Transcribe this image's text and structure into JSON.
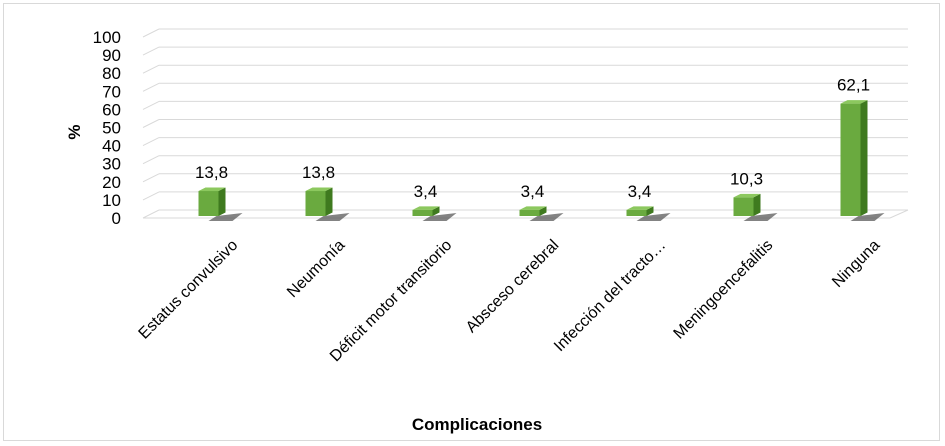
{
  "chart_data": {
    "type": "bar",
    "title": "",
    "xlabel": "Complicaciones",
    "ylabel": "%",
    "ylim": [
      0,
      100
    ],
    "yticks": [
      0,
      10,
      20,
      30,
      40,
      50,
      60,
      70,
      80,
      90,
      100
    ],
    "categories": [
      "Estatus convulsivo",
      "Neumonía",
      "Déficit motor transitorio",
      "Absceso cerebral",
      "Infección del tracto…",
      "Meningoencefalitis",
      "Ninguna"
    ],
    "values": [
      13.8,
      13.8,
      3.4,
      3.4,
      3.4,
      10.3,
      62.1
    ],
    "data_labels": [
      "13,8",
      "13,8",
      "3,4",
      "3,4",
      "3,4",
      "10,3",
      "62,1"
    ],
    "grid": true,
    "legend": "none",
    "style": "3d-column",
    "colors": {
      "bar_front": "#6aaa3f",
      "bar_side": "#3f7a1f",
      "bar_top": "#8cc85e",
      "shadow": "#5a5a5a",
      "grid": "#d9d9d9"
    }
  }
}
